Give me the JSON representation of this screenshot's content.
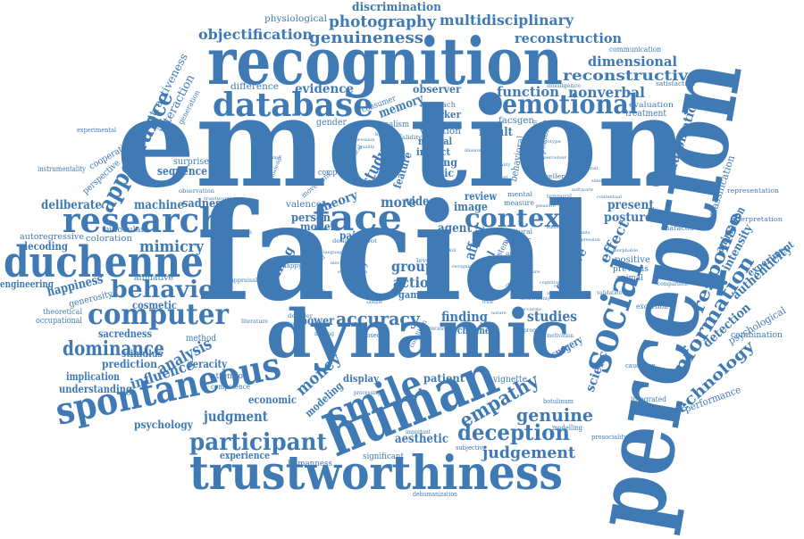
{
  "colors": {
    "word": "#3f7ab5",
    "background": "#ffffff"
  },
  "words": {
    "emotion": "emotion",
    "facial": "facial",
    "perception": "perception",
    "recognition": "recognition",
    "dynamic": "dynamic",
    "human": "human",
    "trustworthiness": "trustworthiness",
    "spontaneous": "spontaneous",
    "duchenne": "duchenne",
    "research": "research",
    "database": "database",
    "emotional": "emotional",
    "face": "face",
    "context": "context",
    "social": "social",
    "smile": "smile",
    "computer": "computer",
    "behavior": "behavior",
    "participant": "participant",
    "deception": "deception",
    "judgement": "judgement",
    "judgment": "judgment",
    "empathy": "empathy",
    "genuine": "genuine",
    "information": "information",
    "technology": "technology",
    "response": "response",
    "appearance": "appearance",
    "genuineness": "genuineness",
    "photography": "photography",
    "multidisciplinary": "multidisciplinary",
    "objectification": "objectification",
    "discrimination": "discrimination",
    "reconstruction": "reconstruction",
    "dimensional": "dimensional",
    "reconstructive": "reconstructive",
    "nonverbal": "nonverbal",
    "function": "function",
    "evidence": "evidence",
    "memory": "memory",
    "mimicry": "mimicry",
    "happiness": "happiness",
    "dominance": "dominance",
    "analysis": "analysis",
    "influence": "influence",
    "accuracy": "accuracy",
    "money": "money",
    "group": "group",
    "action": "action",
    "science": "science",
    "studies": "studies",
    "finding": "finding",
    "affective": "affective",
    "effect": "effect",
    "automatic": "automatic",
    "detection": "detection",
    "animation": "animation",
    "intensity": "intensity",
    "authenticity": "authenticity",
    "experiment": "experiment",
    "classification": "classification",
    "posture": "posture",
    "present": "present",
    "aesthetic": "aesthetic",
    "experience": "experience",
    "training": "training",
    "machine": "machine",
    "sequence": "sequence",
    "sadness": "sadness",
    "deliberate": "deliberate",
    "decoding": "decoding",
    "engineering": "engineering",
    "cosmetic": "cosmetic",
    "prediction": "prediction",
    "veracity": "veracity",
    "implication": "implication",
    "understanding": "understanding",
    "psychology": "psychology",
    "economic": "economic",
    "modeling": "modeling",
    "patient": "patient",
    "display": "display",
    "vignette": "vignette",
    "surgery": "surgery",
    "performance": "performance",
    "psychological": "psychological",
    "combination": "combination",
    "interpretation": "interpretation",
    "representation": "representation",
    "physiological": "physiological",
    "attractiveness": "attractiveness",
    "interaction": "interaction",
    "cooperation": "cooperation",
    "perspective": "perspective",
    "difference": "difference",
    "observer": "observer",
    "marker": "marker",
    "facsgen": "facsgen",
    "treatment": "treatment",
    "evaluation": "evaluation",
    "communication": "communication",
    "study": "study",
    "theory": "theory",
    "model": "model",
    "person": "person",
    "pain": "pain",
    "image": "image",
    "video": "video",
    "result": "result",
    "review": "review",
    "more": "more",
    "feature": "feature",
    "rating": "rating",
    "impact": "impact",
    "neutral": "neutral",
    "static": "static",
    "violation": "violation",
    "agent": "agent",
    "affect": "affect",
    "artificial": "artificial",
    "game": "game",
    "power": "power",
    "channel": "channel",
    "valence": "valence",
    "computing": "computing",
    "movement": "movement",
    "gender": "gender",
    "consumer": "consumer",
    "realism": "realism",
    "approach": "approach",
    "generation": "generation",
    "surprise": "surprise",
    "binocular": "binocular",
    "coloration": "coloration",
    "autoregressive": "autoregressive",
    "affiliative": "affiliative",
    "generosity": "generosity",
    "sacredness": "sacredness",
    "theoretical": "theoretical",
    "occupational": "occupational",
    "method": "method",
    "attention": "attention",
    "competence": "competence",
    "stimulus": "stimulus",
    "humanness": "humanness",
    "significant": "significant",
    "dehumanization": "dehumanization",
    "subjective": "subjective",
    "important": "important",
    "botulinum": "botulinum",
    "modelling": "modelling",
    "prosociality": "prosociality",
    "integrated": "integrated",
    "caucasian": "caucasian",
    "exclusion": "exclusion",
    "positive": "positive",
    "previous": "previous",
    "animal": "animal",
    "character": "character",
    "comparison": "comparison",
    "validation": "validation",
    "instrumentality": "instrumentality",
    "experimental": "experimental",
    "satisfaction": "satisfaction",
    "intelligence": "intelligence",
    "behavioral": "behavioral",
    "interpersonal": "interpersonal",
    "traveller": "traveller",
    "temporal": "temporal",
    "system": "system",
    "body": "body",
    "posed": "posed",
    "level": "level",
    "happy": "happy",
    "virtual": "virtual",
    "robot": "robot",
    "design": "design",
    "specific": "specific",
    "dataset": "dataset",
    "mental": "mental",
    "measure": "measure",
    "cultural": "cultural",
    "avatar": "avatar",
    "article": "article",
    "condition": "condition",
    "processes": "processes",
    "mind": "mind",
    "software": "software",
    "observation": "observation",
    "trustworthy": "trustworthy",
    "attribution": "attribution",
    "appraisal": "appraisal",
    "religious": "religious",
    "literature": "literature",
    "decoder": "decoder",
    "making": "making",
    "future": "future",
    "stereotype": "stereotype",
    "morphable": "morphable",
    "illusion": "illusion",
    "emotionality": "emotionality",
    "disgust": "disgust",
    "pleasure": "pleasure",
    "biases": "biases",
    "cognitive": "cognitive",
    "arousal": "arousal",
    "skill": "skill",
    "recognize": "recognize",
    "culture": "culture",
    "embodiment": "embodiment",
    "perceiver": "perceiver",
    "negative": "negative",
    "hypothesis": "hypothesis",
    "empirical": "empirical",
    "validity": "validity",
    "contextual": "contextual",
    "memorability": "memorability",
    "language": "language",
    "accurate": "accurate",
    "program": "program",
    "mechanism": "mechanism",
    "motivation": "motivation",
    "exaggeration": "exaggeration",
    "likability": "likability",
    "sample": "sample",
    "trust": "trust",
    "nature": "nature",
    "reliability": "reliability",
    "participants": "participants",
    "impression": "impression",
    "portrait": "portrait",
    "processing": "processing",
    "knowledge": "knowledge",
    "simulation": "simulation",
    "expression": "expression",
    "quality": "quality",
    "judge": "judge",
    "signal": "signal"
  }
}
